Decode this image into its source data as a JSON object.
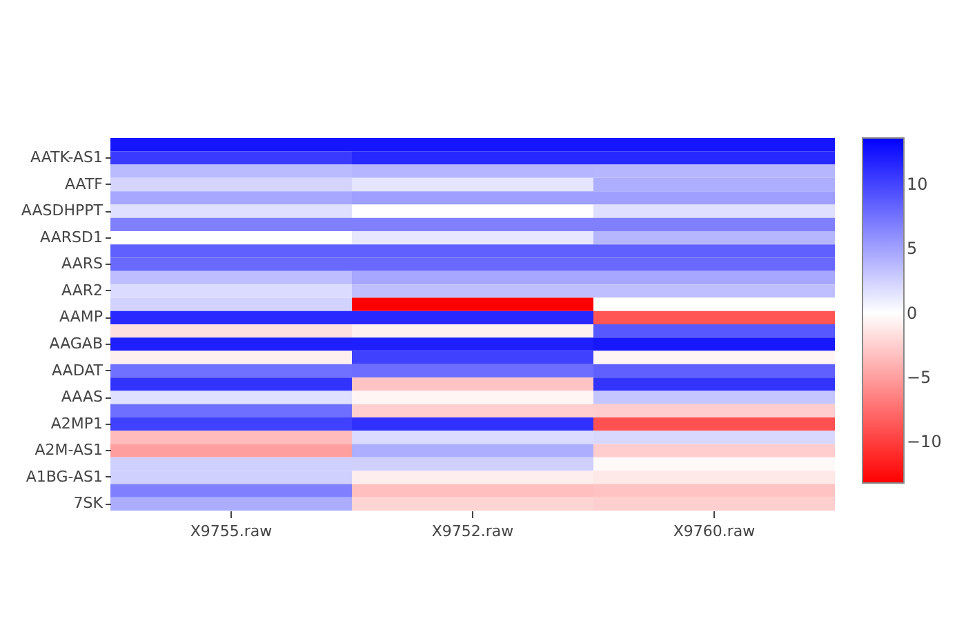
{
  "chart_data": {
    "type": "heatmap",
    "categories": [
      "X9755.raw",
      "X9752.raw",
      "X9760.raw"
    ],
    "y_categories": [
      null,
      "AATK-AS1",
      null,
      "AATF",
      null,
      "AASDHPPT",
      null,
      "AARSD1",
      null,
      "AARS",
      null,
      "AAR2",
      null,
      "AAMP",
      null,
      "AAGAB",
      null,
      "AADAT",
      null,
      "AAAS",
      null,
      "A2MP1",
      null,
      "A2M-AS1",
      null,
      "A1BG-AS1",
      null,
      "7SK"
    ],
    "cells": [
      [
        12.5,
        12.5,
        12.5
      ],
      [
        10.5,
        11.5,
        11.5
      ],
      [
        3.7,
        4,
        3.9
      ],
      [
        2.3,
        1.4,
        4.3
      ],
      [
        4.7,
        5.1,
        5.1
      ],
      [
        1.7,
        0,
        1.7
      ],
      [
        6.8,
        6.8,
        6.8
      ],
      [
        0,
        1.3,
        3.9
      ],
      [
        8.5,
        8.5,
        8.5
      ],
      [
        8,
        8,
        8
      ],
      [
        3.5,
        4.7,
        4.7
      ],
      [
        1.9,
        3.4,
        3.4
      ],
      [
        2.4,
        -13.2,
        0
      ],
      [
        11.4,
        11.4,
        -8.8
      ],
      [
        -1.6,
        -0.8,
        8.9
      ],
      [
        12,
        12,
        12.3
      ],
      [
        -0.8,
        10.2,
        -0.5
      ],
      [
        7.6,
        7.8,
        8.5
      ],
      [
        10.9,
        -3.1,
        10.9
      ],
      [
        1.7,
        -0.5,
        3.1
      ],
      [
        7.7,
        -2.5,
        -2.6
      ],
      [
        10.2,
        11,
        -9
      ],
      [
        -3.5,
        1.9,
        2.1
      ],
      [
        -5,
        4.3,
        -2.6
      ],
      [
        2.5,
        2.5,
        -0.3
      ],
      [
        2.5,
        -0.9,
        -1.2
      ],
      [
        6.8,
        -3.3,
        -3.1
      ],
      [
        4.4,
        -2.2,
        -2.5
      ]
    ],
    "clim": [
      -13.2,
      13.6
    ],
    "cticks": [
      -10,
      -5,
      0,
      5,
      10
    ]
  }
}
